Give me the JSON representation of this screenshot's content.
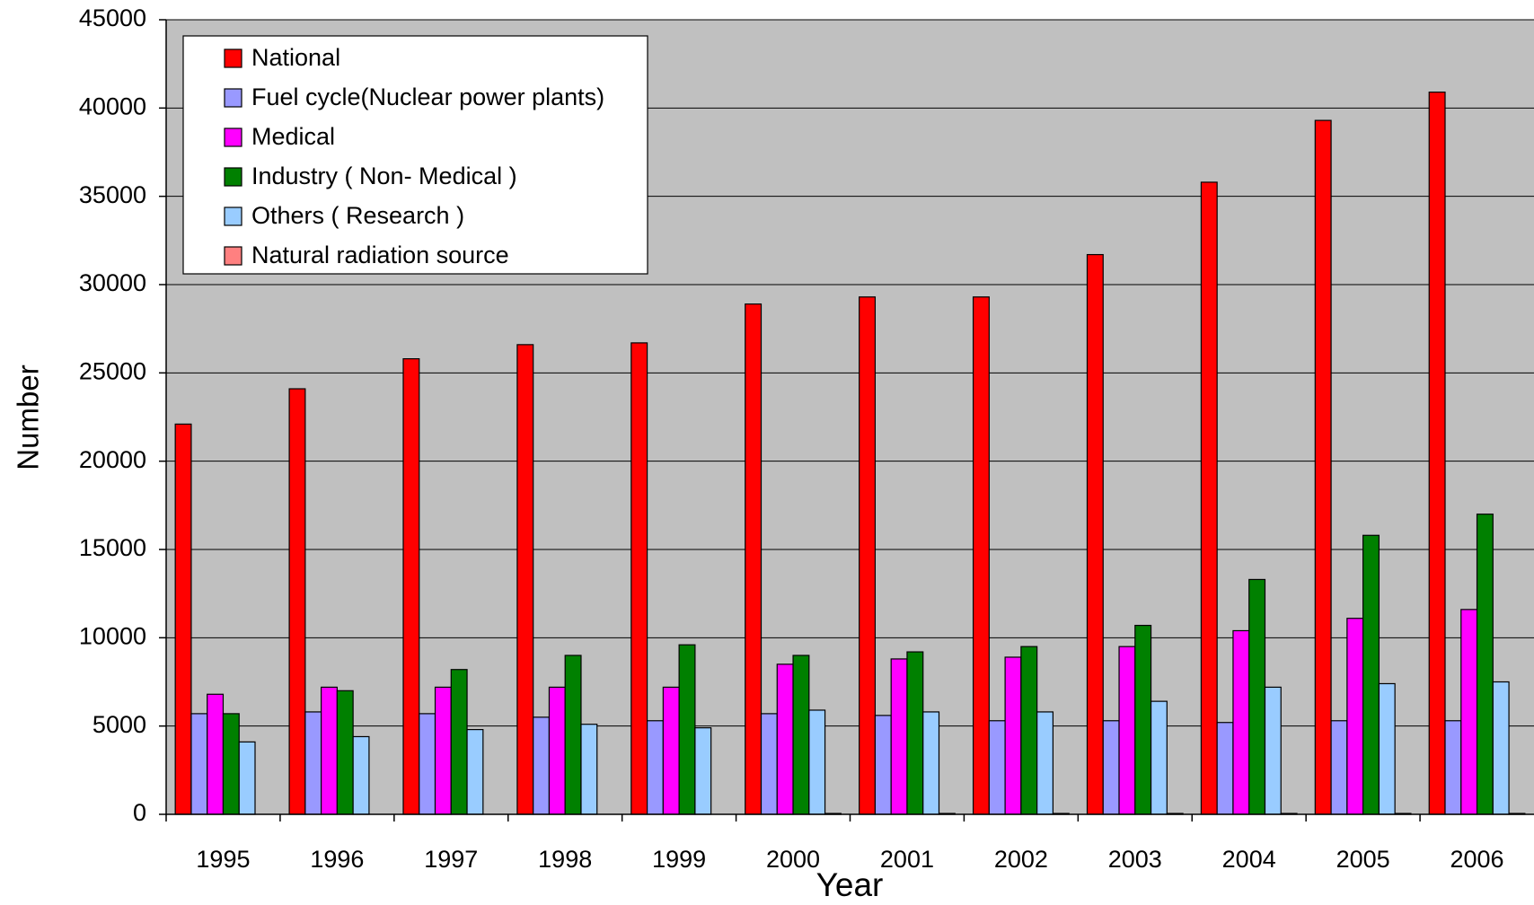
{
  "chart_data": {
    "type": "bar",
    "x_label": "Year",
    "y_label": "Number",
    "categories": [
      "1995",
      "1996",
      "1997",
      "1998",
      "1999",
      "2000",
      "2001",
      "2002",
      "2003",
      "2004",
      "2005",
      "2006"
    ],
    "series": [
      {
        "name": "National",
        "color": "#ff0000",
        "values": [
          22100,
          24100,
          25800,
          26600,
          26700,
          28900,
          29300,
          29300,
          31700,
          35800,
          39300,
          40900
        ]
      },
      {
        "name": "Fuel cycle(Nuclear power plants)",
        "color": "#9999ff",
        "values": [
          5700,
          5800,
          5700,
          5500,
          5300,
          5700,
          5600,
          5300,
          5300,
          5200,
          5300,
          5300
        ]
      },
      {
        "name": "Medical",
        "color": "#ff00ff",
        "values": [
          6800,
          7200,
          7200,
          7200,
          7200,
          8500,
          8800,
          8900,
          9500,
          10400,
          11100,
          11600
        ]
      },
      {
        "name": "Industry ( Non- Medical )",
        "color": "#008000",
        "values": [
          5700,
          7000,
          8200,
          9000,
          9600,
          9000,
          9200,
          9500,
          10700,
          13300,
          15800,
          17000
        ]
      },
      {
        "name": "Others ( Research )",
        "color": "#99ccff",
        "values": [
          4100,
          4400,
          4800,
          5100,
          4900,
          5900,
          5800,
          5800,
          6400,
          7200,
          7400,
          7500
        ]
      },
      {
        "name": "Natural radiation source",
        "color": "#ff8080",
        "values": [
          0,
          0,
          0,
          0,
          0,
          50,
          50,
          50,
          50,
          50,
          50,
          50
        ]
      }
    ],
    "ylim": [
      0,
      45000
    ],
    "yticks": [
      0,
      5000,
      10000,
      15000,
      20000,
      25000,
      30000,
      35000,
      40000,
      45000
    ],
    "grid": true,
    "legend": "upper left",
    "background": "#c0c0c0"
  }
}
